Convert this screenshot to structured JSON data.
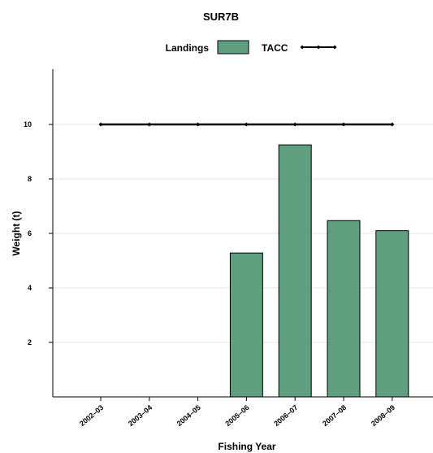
{
  "chart_data": {
    "type": "bar",
    "title": "SUR7B",
    "xlabel": "Fishing Year",
    "ylabel": "Weight (t)",
    "ylim": [
      0,
      12
    ],
    "yticks": [
      2,
      4,
      6,
      8,
      10
    ],
    "grid": "horizontal",
    "legend_position": "top",
    "categories": [
      "2002–03",
      "2003–04",
      "2004–05",
      "2005–06",
      "2006–07",
      "2007–08",
      "2008–09"
    ],
    "series": [
      {
        "name": "Landings",
        "type": "bar",
        "color": "#5f9e7f",
        "values": [
          0,
          0,
          0,
          5.28,
          9.25,
          6.47,
          6.1
        ]
      },
      {
        "name": "TACC",
        "type": "line",
        "color": "#000000",
        "values": [
          10,
          10,
          10,
          10,
          10,
          10,
          10
        ]
      }
    ]
  }
}
